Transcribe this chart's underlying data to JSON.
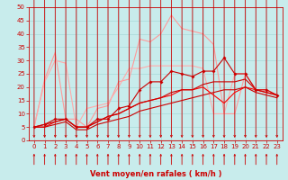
{
  "xlabel": "Vent moyen/en rafales ( km/h )",
  "xlim": [
    -0.5,
    23.5
  ],
  "ylim": [
    0,
    50
  ],
  "yticks": [
    0,
    5,
    10,
    15,
    20,
    25,
    30,
    35,
    40,
    45,
    50
  ],
  "xticks": [
    0,
    1,
    2,
    3,
    4,
    5,
    6,
    7,
    8,
    9,
    10,
    11,
    12,
    13,
    14,
    15,
    16,
    17,
    18,
    19,
    20,
    21,
    22,
    23
  ],
  "bg_color": "#c8ecec",
  "grid_color": "#a8d8d8",
  "line1_x": [
    0,
    1,
    2,
    3,
    4,
    5,
    6,
    7,
    8,
    9,
    10,
    11,
    12,
    13,
    14,
    15,
    16,
    17,
    18,
    19,
    20,
    21,
    22,
    23
  ],
  "line1_y": [
    5,
    23,
    33,
    8,
    8,
    5,
    12,
    13,
    22,
    23,
    38,
    37,
    40,
    47,
    42,
    41,
    40,
    36,
    10,
    10,
    25,
    19,
    19,
    17
  ],
  "line1_color": "#ff9999",
  "line2_x": [
    0,
    1,
    2,
    3,
    4,
    5,
    6,
    7,
    8,
    9,
    10,
    11,
    12,
    13,
    14,
    15,
    16,
    17,
    18,
    19,
    20,
    21,
    22,
    23
  ],
  "line2_y": [
    5,
    22,
    30,
    29,
    5,
    12,
    13,
    14,
    20,
    27,
    27,
    28,
    28,
    28,
    28,
    28,
    27,
    10,
    10,
    25,
    25,
    19,
    19,
    17
  ],
  "line2_color": "#ffaaaa",
  "line3_x": [
    0,
    1,
    2,
    3,
    4,
    5,
    6,
    7,
    8,
    9,
    10,
    11,
    12,
    13,
    14,
    15,
    16,
    17,
    18,
    19,
    20,
    21,
    22,
    23
  ],
  "line3_y": [
    5,
    6,
    8,
    8,
    5,
    5,
    8,
    8,
    12,
    13,
    19,
    22,
    22,
    26,
    25,
    24,
    26,
    26,
    31,
    25,
    25,
    19,
    19,
    17
  ],
  "line3_color": "#cc0000",
  "line4_x": [
    0,
    1,
    2,
    3,
    4,
    5,
    6,
    7,
    8,
    9,
    10,
    11,
    12,
    13,
    14,
    15,
    16,
    17,
    18,
    19,
    20,
    21,
    22,
    23
  ],
  "line4_y": [
    5,
    6,
    7,
    8,
    5,
    5,
    7,
    9,
    10,
    12,
    14,
    15,
    16,
    18,
    19,
    19,
    21,
    22,
    22,
    22,
    23,
    19,
    18,
    17
  ],
  "line4_color": "#cc0000",
  "line5_x": [
    0,
    1,
    2,
    3,
    4,
    5,
    6,
    7,
    8,
    9,
    10,
    11,
    12,
    13,
    14,
    15,
    16,
    17,
    18,
    19,
    20,
    21,
    22,
    23
  ],
  "line5_y": [
    5,
    5,
    6,
    7,
    4,
    4,
    6,
    7,
    8,
    9,
    11,
    12,
    13,
    14,
    15,
    16,
    17,
    18,
    19,
    19,
    20,
    18,
    17,
    16
  ],
  "line5_color": "#cc0000",
  "line6_x": [
    0,
    1,
    2,
    3,
    4,
    5,
    6,
    7,
    8,
    9,
    10,
    11,
    12,
    13,
    14,
    15,
    16,
    17,
    18,
    19,
    20,
    21,
    22,
    23
  ],
  "line6_y": [
    5,
    5,
    7,
    8,
    5,
    5,
    7,
    9,
    10,
    12,
    14,
    15,
    16,
    17,
    19,
    19,
    20,
    17,
    14,
    18,
    20,
    19,
    18,
    17
  ],
  "line6_color": "#ff0000",
  "red_color": "#cc0000",
  "tick_fontsize": 5,
  "xlabel_fontsize": 6
}
